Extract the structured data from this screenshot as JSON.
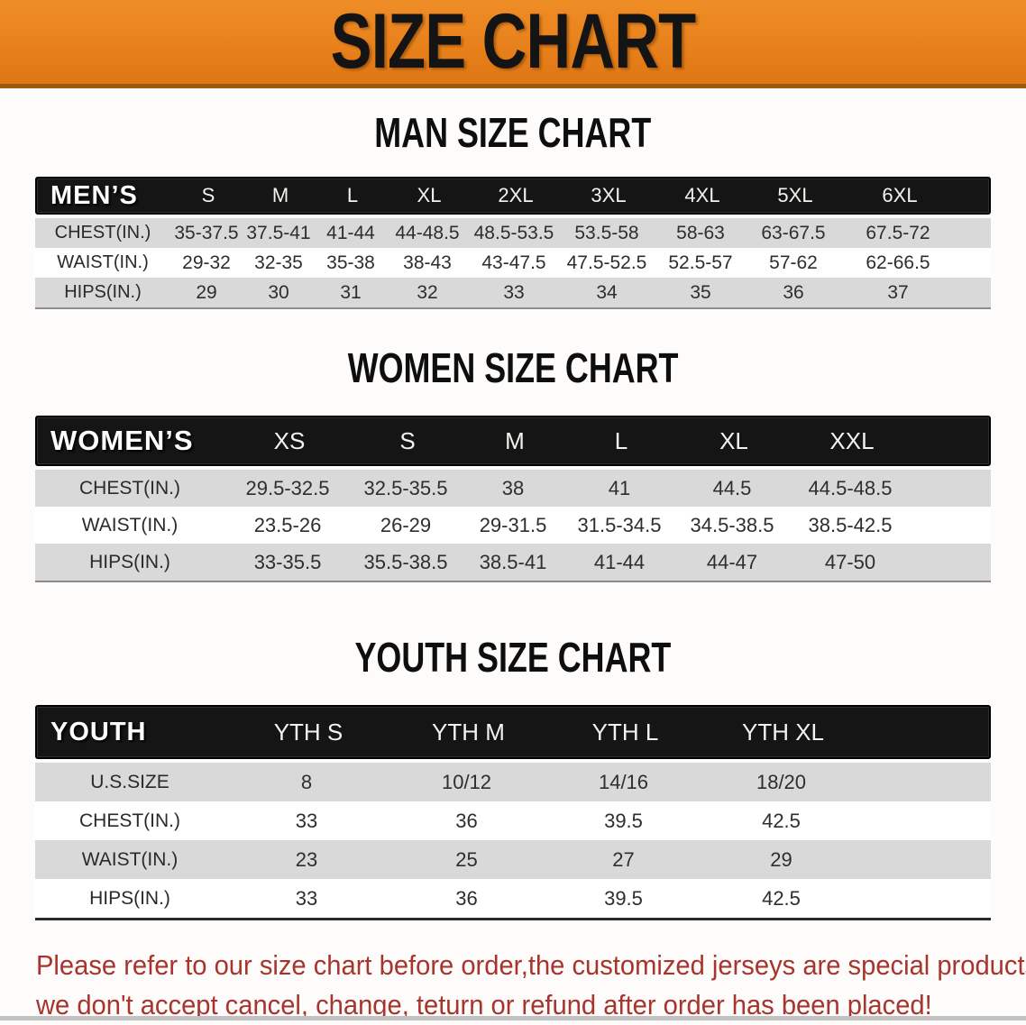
{
  "banner": {
    "title": "SIZE CHART"
  },
  "colors": {
    "banner_orange": "#e8811c",
    "banner_border": "#9c5a13",
    "header_bar_black": "#151515",
    "row_gray": "#d9d9d9",
    "row_white": "#ffffff",
    "footer_red": "#a8342e",
    "text_dark": "#2e2e2e"
  },
  "sections": [
    {
      "heading": "MAN SIZE CHART",
      "table": {
        "group_label": "MEN’S",
        "columns": [
          "S",
          "M",
          "L",
          "XL",
          "2XL",
          "3XL",
          "4XL",
          "5XL",
          "6XL"
        ],
        "rows": [
          {
            "label": "CHEST(IN.)",
            "values": [
              "35-37.5",
              "37.5-41",
              "41-44",
              "44-48.5",
              "48.5-53.5",
              "53.5-58",
              "58-63",
              "63-67.5",
              "67.5-72"
            ]
          },
          {
            "label": "WAIST(IN.)",
            "values": [
              "29-32",
              "32-35",
              "35-38",
              "38-43",
              "43-47.5",
              "47.5-52.5",
              "52.5-57",
              "57-62",
              "62-66.5"
            ]
          },
          {
            "label": "HIPS(IN.)",
            "values": [
              "29",
              "30",
              "31",
              "32",
              "33",
              "34",
              "35",
              "36",
              "37"
            ]
          }
        ]
      }
    },
    {
      "heading": "WOMEN SIZE CHART",
      "table": {
        "group_label": "WOMEN’S",
        "columns": [
          "XS",
          "S",
          "M",
          "L",
          "XL",
          "XXL"
        ],
        "rows": [
          {
            "label": "CHEST(IN.)",
            "values": [
              "29.5-32.5",
              "32.5-35.5",
              "38",
              "41",
              "44.5",
              "44.5-48.5"
            ]
          },
          {
            "label": "WAIST(IN.)",
            "values": [
              "23.5-26",
              "26-29",
              "29-31.5",
              "31.5-34.5",
              "34.5-38.5",
              "38.5-42.5"
            ]
          },
          {
            "label": "HIPS(IN.)",
            "values": [
              "33-35.5",
              "35.5-38.5",
              "38.5-41",
              "41-44",
              "44-47",
              "47-50"
            ]
          }
        ]
      }
    },
    {
      "heading": "YOUTH SIZE CHART",
      "table": {
        "group_label": "YOUTH",
        "columns": [
          "YTH S",
          "YTH M",
          "YTH L",
          "YTH XL"
        ],
        "rows": [
          {
            "label": "U.S.SIZE",
            "values": [
              "8",
              "10/12",
              "14/16",
              "18/20"
            ]
          },
          {
            "label": "CHEST(IN.)",
            "values": [
              "33",
              "36",
              "39.5",
              "42.5"
            ]
          },
          {
            "label": "WAIST(IN.)",
            "values": [
              "23",
              "25",
              "27",
              "29"
            ]
          },
          {
            "label": "HIPS(IN.)",
            "values": [
              "33",
              "36",
              "39.5",
              "42.5"
            ]
          }
        ]
      }
    }
  ],
  "footer": {
    "line1": "Please refer to our size chart before order,the customized jerseys are special products,",
    "line2": "we don't accept cancel, change, teturn or refund after order has been placed!"
  }
}
